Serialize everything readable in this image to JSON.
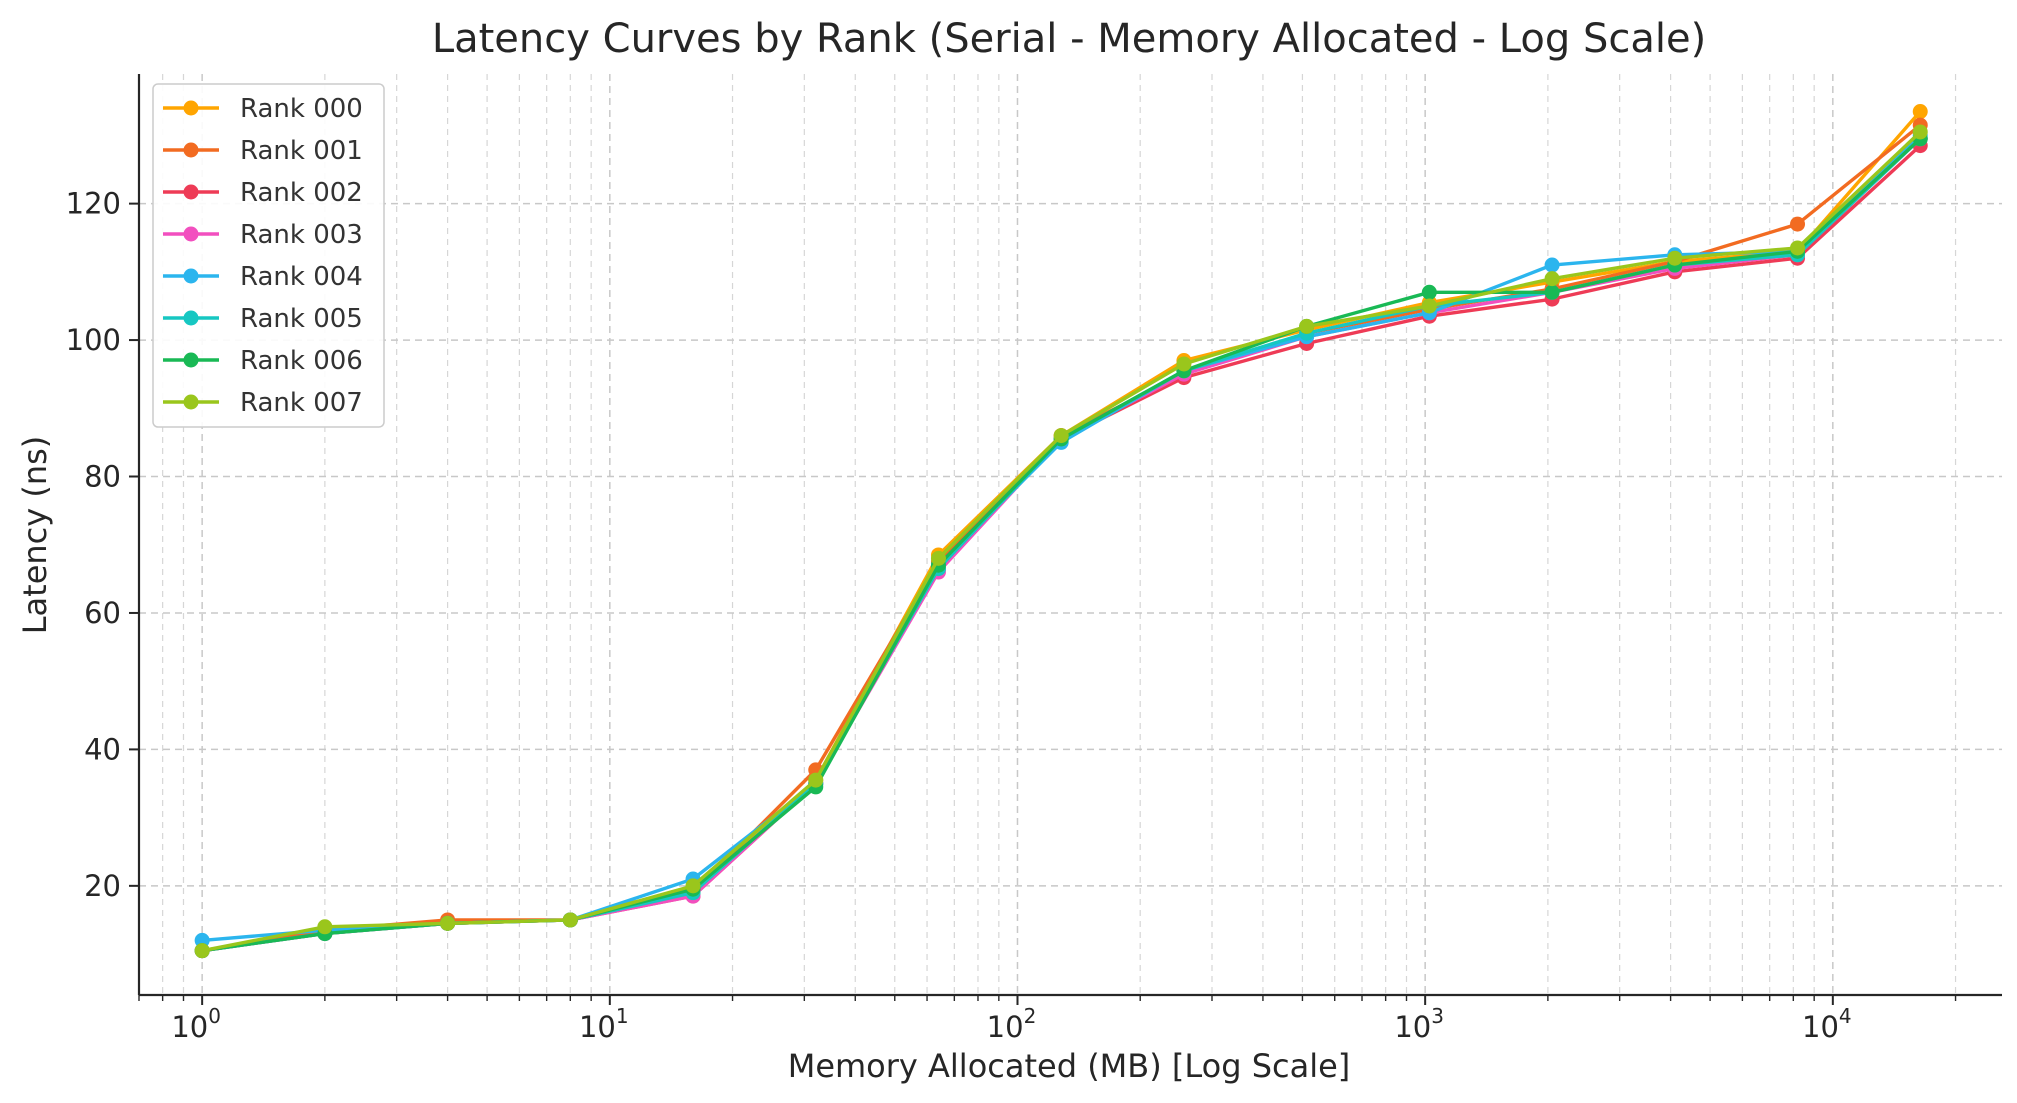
{
  "chart_data": {
    "type": "line",
    "title": "Latency Curves by Rank (Serial - Memory Allocated - Log Scale)",
    "xlabel": "Memory Allocated (MB) [Log Scale]",
    "ylabel": "Latency (ns)",
    "x_scale": "log",
    "xlim": [
      0.7,
      26000
    ],
    "ylim": [
      4,
      139
    ],
    "x_ticks": [
      {
        "value": 1,
        "base": "10",
        "exp": "0"
      },
      {
        "value": 10,
        "base": "10",
        "exp": "1"
      },
      {
        "value": 100,
        "base": "10",
        "exp": "2"
      },
      {
        "value": 1000,
        "base": "10",
        "exp": "3"
      },
      {
        "value": 10000,
        "base": "10",
        "exp": "4"
      }
    ],
    "y_ticks": [
      20,
      40,
      60,
      80,
      100,
      120
    ],
    "y_tick_labels": [
      "20",
      "40",
      "60",
      "80",
      "100",
      "120"
    ],
    "grid": true,
    "legend_position": "top-left",
    "x": [
      1,
      2,
      4,
      8,
      16,
      32,
      64,
      128,
      256,
      512,
      1024,
      2048,
      4096,
      8192,
      16384
    ],
    "series": [
      {
        "name": "Rank 000",
        "color": "#FFA500",
        "values": [
          10.5,
          13.5,
          14.5,
          15.0,
          19.5,
          35.5,
          68.5,
          86.0,
          97.0,
          101.5,
          105.5,
          108.5,
          111.5,
          113.0,
          133.5
        ]
      },
      {
        "name": "Rank 001",
        "color": "#F26B21",
        "values": [
          10.5,
          13.5,
          15.0,
          15.0,
          19.0,
          37.0,
          67.5,
          86.0,
          95.0,
          101.0,
          104.5,
          107.5,
          111.5,
          117.0,
          131.5
        ]
      },
      {
        "name": "Rank 002",
        "color": "#EE3B56",
        "values": [
          10.5,
          13.0,
          14.5,
          15.0,
          18.5,
          35.0,
          66.5,
          85.5,
          94.5,
          99.5,
          103.5,
          106.0,
          110.0,
          112.0,
          128.5
        ]
      },
      {
        "name": "Rank 003",
        "color": "#F24FBF",
        "values": [
          10.5,
          13.0,
          14.5,
          15.0,
          18.5,
          35.0,
          66.0,
          85.5,
          95.0,
          100.5,
          104.0,
          107.0,
          110.5,
          112.5,
          129.5
        ]
      },
      {
        "name": "Rank 004",
        "color": "#2BB5EE",
        "values": [
          12.0,
          13.5,
          14.5,
          15.0,
          21.0,
          35.0,
          67.0,
          85.0,
          95.5,
          100.5,
          104.0,
          111.0,
          112.5,
          113.0,
          130.0
        ]
      },
      {
        "name": "Rank 005",
        "color": "#16C7C2",
        "values": [
          10.5,
          13.0,
          14.5,
          15.0,
          19.0,
          35.0,
          66.5,
          85.5,
          95.5,
          101.0,
          105.0,
          107.0,
          111.0,
          112.5,
          129.5
        ]
      },
      {
        "name": "Rank 006",
        "color": "#19B955",
        "values": [
          10.5,
          13.0,
          14.5,
          15.0,
          19.5,
          34.5,
          67.0,
          85.5,
          95.5,
          102.0,
          107.0,
          107.0,
          111.0,
          113.0,
          129.5
        ]
      },
      {
        "name": "Rank 007",
        "color": "#9AC61C",
        "values": [
          10.5,
          14.0,
          14.5,
          15.0,
          20.0,
          35.5,
          68.0,
          86.0,
          96.5,
          102.0,
          105.0,
          109.0,
          112.0,
          113.5,
          130.5
        ]
      }
    ]
  }
}
